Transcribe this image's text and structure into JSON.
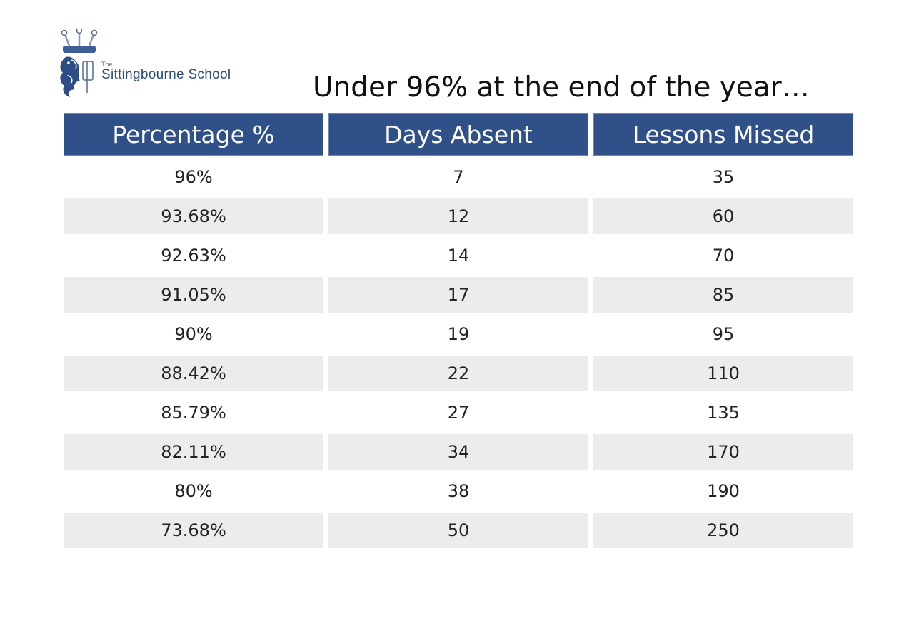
{
  "logo": {
    "the": "The",
    "name": "Sittingbourne School"
  },
  "title": "Under 96% at the end of the year…",
  "table": {
    "headers": [
      "Percentage %",
      "Days Absent",
      "Lessons Missed"
    ],
    "rows": [
      [
        "96%",
        "7",
        "35"
      ],
      [
        "93.68%",
        "12",
        "60"
      ],
      [
        "92.63%",
        "14",
        "70"
      ],
      [
        "91.05%",
        "17",
        "85"
      ],
      [
        "90%",
        "19",
        "95"
      ],
      [
        "88.42%",
        "22",
        "110"
      ],
      [
        "85.79%",
        "27",
        "135"
      ],
      [
        "82.11%",
        "34",
        "170"
      ],
      [
        "80%",
        "38",
        "190"
      ],
      [
        "73.68%",
        "50",
        "250"
      ]
    ]
  },
  "colors": {
    "header_bg": "#2f5089",
    "row_shade": "#ececec",
    "brand": "#2e4c80"
  }
}
